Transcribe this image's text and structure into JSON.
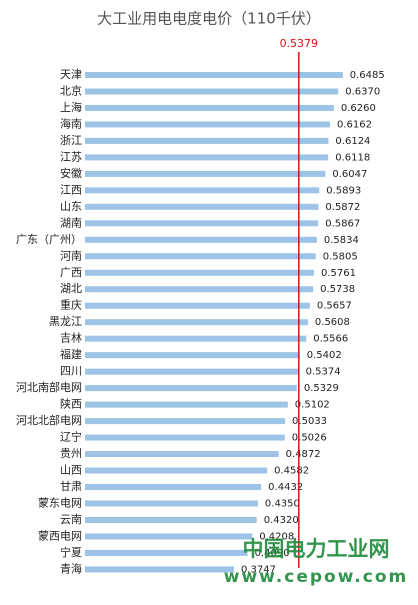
{
  "chart_data": {
    "type": "bar",
    "orientation": "horizontal",
    "title": "大工业用电电度电价（110千伏）",
    "categories": [
      "天津",
      "北京",
      "上海",
      "海南",
      "浙江",
      "江苏",
      "安徽",
      "江西",
      "山东",
      "湖南",
      "广东（广州）",
      "河南",
      "广西",
      "湖北",
      "重庆",
      "黑龙江",
      "吉林",
      "福建",
      "四川",
      "河北南部电网",
      "陕西",
      "河北北部电网",
      "辽宁",
      "贵州",
      "山西",
      "甘肃",
      "蒙东电网",
      "云南",
      "蒙西电网",
      "宁夏",
      "青海"
    ],
    "values": [
      0.6485,
      0.637,
      0.626,
      0.6162,
      0.6124,
      0.6118,
      0.6047,
      0.5893,
      0.5872,
      0.5867,
      0.5834,
      0.5805,
      0.5761,
      0.5738,
      0.5657,
      0.5608,
      0.5566,
      0.5402,
      0.5374,
      0.5329,
      0.5102,
      0.5033,
      0.5026,
      0.4872,
      0.4582,
      0.4432,
      0.435,
      0.432,
      0.4208,
      0.409,
      0.3747
    ],
    "value_labels": [
      "0.6485",
      "0.6370",
      "0.6260",
      "0.6162",
      "0.6124",
      "0.6118",
      "0.6047",
      "0.5893",
      "0.5872",
      "0.5867",
      "0.5834",
      "0.5805",
      "0.5761",
      "0.5738",
      "0.5657",
      "0.5608",
      "0.5566",
      "0.5402",
      "0.5374",
      "0.5329",
      "0.5102",
      "0.5033",
      "0.5026",
      "0.4872",
      "0.4582",
      "0.4432",
      "0.4350",
      "0.4320",
      "0.4208",
      "0.4090",
      "0.3747"
    ],
    "color": "#9dc3e6",
    "xlim": [
      0,
      0.8
    ],
    "reference_line": {
      "value": 0.5379,
      "color": "#e01010"
    },
    "watermark": [
      "中国电力工业网",
      "www.cepow.com"
    ],
    "watermark_color": "#1e8a3a"
  }
}
